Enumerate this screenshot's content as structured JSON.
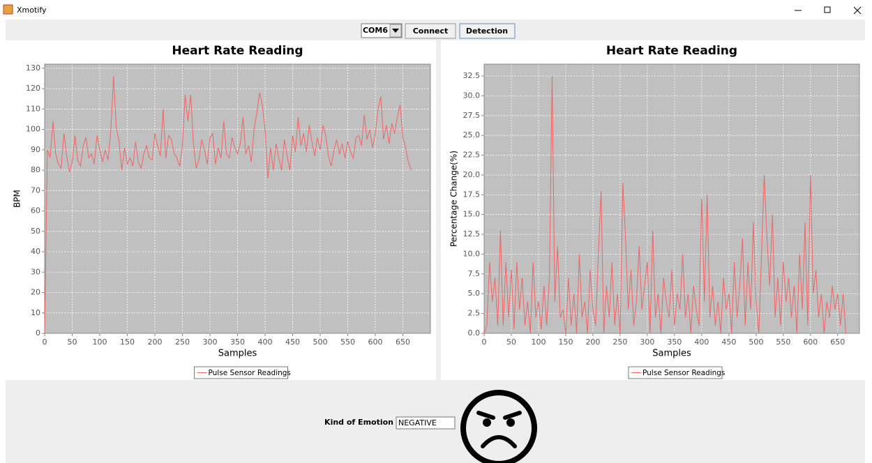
{
  "window": {
    "title": "Xmotify"
  },
  "toolbar": {
    "port": "COM6",
    "buttons": [
      "Connect",
      "Detection"
    ]
  },
  "emotion": {
    "label": "Kind of Emotion",
    "value": "NEGATIVE"
  },
  "chart_data": [
    {
      "type": "line",
      "title": "Heart Rate Reading",
      "x_label": "Samples",
      "y_label": "BPM",
      "grid": true,
      "legend": "bottom",
      "xlim": [
        0,
        700
      ],
      "xticks": [
        0,
        50,
        100,
        150,
        200,
        250,
        300,
        350,
        400,
        450,
        500,
        550,
        600,
        650
      ],
      "ylim": [
        0,
        132
      ],
      "yticks": [
        0,
        10,
        20,
        30,
        40,
        50,
        60,
        70,
        80,
        90,
        100,
        110,
        120,
        130
      ],
      "x": [
        0,
        5,
        10,
        15,
        20,
        25,
        30,
        35,
        40,
        45,
        50,
        55,
        60,
        65,
        70,
        75,
        80,
        85,
        90,
        95,
        100,
        105,
        110,
        115,
        120,
        125,
        130,
        135,
        140,
        145,
        150,
        155,
        160,
        165,
        170,
        175,
        180,
        185,
        190,
        195,
        200,
        205,
        210,
        215,
        220,
        225,
        230,
        235,
        240,
        245,
        250,
        255,
        260,
        265,
        270,
        275,
        280,
        285,
        290,
        295,
        300,
        305,
        310,
        315,
        320,
        325,
        330,
        335,
        340,
        345,
        350,
        355,
        360,
        365,
        370,
        375,
        380,
        385,
        390,
        395,
        400,
        405,
        410,
        415,
        420,
        425,
        430,
        435,
        440,
        445,
        450,
        455,
        460,
        465,
        470,
        475,
        480,
        485,
        490,
        495,
        500,
        505,
        510,
        515,
        520,
        525,
        530,
        535,
        540,
        545,
        550,
        555,
        560,
        565,
        570,
        575,
        580,
        585,
        590,
        595,
        600,
        605,
        610,
        615,
        620,
        625,
        630,
        635,
        640,
        645,
        650,
        655,
        660,
        665
      ],
      "series": [
        {
          "name": "Pulse Sensor Readings",
          "color": "#f06464",
          "values": [
            0,
            90,
            86,
            104,
            88,
            83,
            81,
            98,
            87,
            79,
            84,
            97,
            85,
            82,
            92,
            96,
            86,
            88,
            83,
            97,
            90,
            84,
            90,
            85,
            99,
            126,
            101,
            94,
            80,
            91,
            83,
            86,
            82,
            94,
            84,
            81,
            88,
            92,
            86,
            85,
            98,
            92,
            87,
            110,
            86,
            97,
            95,
            88,
            86,
            82,
            92,
            117,
            104,
            117,
            93,
            81,
            85,
            95,
            90,
            83,
            96,
            98,
            83,
            91,
            86,
            104,
            88,
            86,
            96,
            91,
            88,
            93,
            106,
            88,
            92,
            84,
            100,
            108,
            118,
            112,
            100,
            76,
            91,
            80,
            93,
            86,
            80,
            95,
            87,
            80,
            97,
            89,
            106,
            92,
            98,
            89,
            102,
            94,
            87,
            96,
            90,
            102,
            97,
            87,
            82,
            90,
            95,
            88,
            93,
            86,
            94,
            89,
            86,
            96,
            97,
            92,
            107,
            95,
            100,
            91,
            98,
            110,
            116,
            95,
            102,
            93,
            103,
            98,
            106,
            112,
            96,
            91,
            84,
            80
          ]
        }
      ]
    },
    {
      "type": "line",
      "title": "Heart Rate Reading",
      "x_label": "Samples",
      "y_label": "Percentage Change(%)",
      "grid": true,
      "legend": "bottom",
      "xlim": [
        0,
        690
      ],
      "xticks": [
        0,
        50,
        100,
        150,
        200,
        250,
        300,
        350,
        400,
        450,
        500,
        550,
        600,
        650
      ],
      "ylim": [
        0,
        34
      ],
      "yticks": [
        {
          "value": 0,
          "label": "0.0"
        },
        2.5,
        {
          "value": 5,
          "label": "5.0"
        },
        7.5,
        {
          "value": 10,
          "label": "10.0"
        },
        12.5,
        {
          "value": 15,
          "label": "15.0"
        },
        17.5,
        {
          "value": 20,
          "label": "20.0"
        },
        22.5,
        {
          "value": 25,
          "label": "25.0"
        },
        27.5,
        {
          "value": 30,
          "label": "30.0"
        },
        32.5
      ],
      "x": [
        0,
        5,
        10,
        15,
        20,
        25,
        30,
        35,
        40,
        45,
        50,
        55,
        60,
        65,
        70,
        75,
        80,
        85,
        90,
        95,
        100,
        105,
        110,
        115,
        120,
        125,
        130,
        135,
        140,
        145,
        150,
        155,
        160,
        165,
        170,
        175,
        180,
        185,
        190,
        195,
        200,
        205,
        210,
        215,
        220,
        225,
        230,
        235,
        240,
        245,
        250,
        255,
        260,
        265,
        270,
        275,
        280,
        285,
        290,
        295,
        300,
        305,
        310,
        315,
        320,
        325,
        330,
        335,
        340,
        345,
        350,
        355,
        360,
        365,
        370,
        375,
        380,
        385,
        390,
        395,
        400,
        405,
        410,
        415,
        420,
        425,
        430,
        435,
        440,
        445,
        450,
        455,
        460,
        465,
        470,
        475,
        480,
        485,
        490,
        495,
        500,
        505,
        510,
        515,
        520,
        525,
        530,
        535,
        540,
        545,
        550,
        555,
        560,
        565,
        570,
        575,
        580,
        585,
        590,
        595,
        600,
        605,
        610,
        615,
        620,
        625,
        630,
        635,
        640,
        645,
        650,
        655,
        660,
        665
      ],
      "series": [
        {
          "name": "Pulse Sensor Readings",
          "color": "#f06464",
          "values": [
            0,
            1,
            9,
            4,
            7,
            1,
            13,
            1,
            9,
            2,
            8,
            0.5,
            9,
            3,
            7,
            1,
            4,
            0,
            9,
            2,
            4,
            0.5,
            6,
            1,
            7,
            32.5,
            4,
            11,
            2,
            3,
            0,
            7,
            1,
            5,
            0,
            10,
            2,
            4,
            0,
            8,
            3,
            1,
            10,
            18,
            0,
            6,
            2,
            9,
            1,
            5,
            0,
            19,
            12,
            3,
            8,
            1,
            4,
            11,
            3,
            6,
            9,
            0,
            13,
            2,
            5,
            0,
            7,
            4,
            2,
            8,
            1,
            5,
            3,
            10,
            2,
            5,
            0,
            6,
            3,
            1,
            17,
            4,
            17.5,
            2,
            6,
            1,
            4,
            0,
            7,
            3,
            5,
            0,
            9,
            2,
            6,
            12,
            1,
            9,
            3,
            14,
            4,
            0,
            10,
            20,
            12,
            6,
            15,
            2,
            7,
            1,
            9,
            4,
            7,
            2,
            6,
            0,
            10,
            3,
            14,
            1,
            20,
            5,
            8,
            2,
            5,
            0,
            4,
            2,
            6,
            3,
            5,
            1,
            5,
            0
          ]
        }
      ]
    }
  ]
}
